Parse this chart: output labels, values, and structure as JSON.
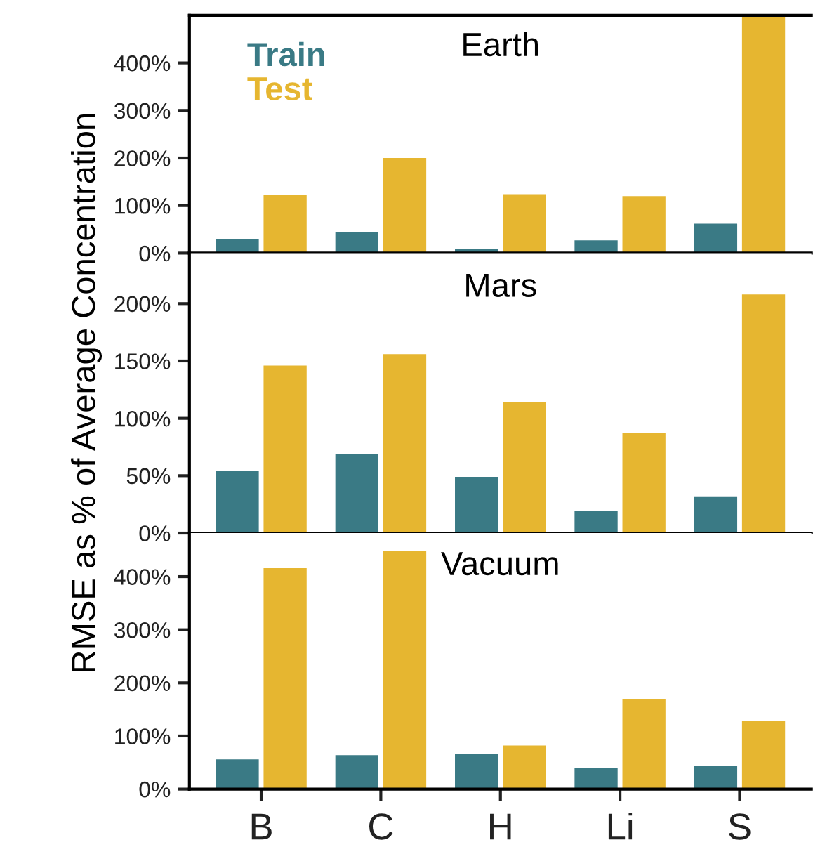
{
  "chart_data": [
    {
      "type": "bar",
      "title": "Earth",
      "categories": [
        null,
        null,
        null,
        null,
        null
      ],
      "series": [
        {
          "name": "Train",
          "color": "#3a7a85",
          "values": [
            29,
            45,
            9,
            27,
            62
          ]
        },
        {
          "name": "Test",
          "color": "#e6b630",
          "values": [
            122,
            200,
            124,
            120,
            500
          ]
        }
      ],
      "ylim": [
        0,
        500
      ],
      "yticks": [
        {
          "value": 0,
          "label": "0%"
        },
        {
          "value": 100,
          "label": "100%"
        },
        {
          "value": 200,
          "label": "200%"
        },
        {
          "value": 300,
          "label": "300%"
        },
        {
          "value": 400,
          "label": "400%"
        }
      ],
      "legend": "top left",
      "grid": false,
      "tick_labels": "y"
    },
    {
      "type": "bar",
      "title": "Mars",
      "ylabel": "RMSE as % of Average Concentration",
      "categories": [
        null,
        null,
        null,
        null,
        null
      ],
      "series": [
        {
          "color": "#3a7a85",
          "values": [
            54,
            69,
            49,
            19,
            32
          ]
        },
        {
          "color": "#e6b630",
          "values": [
            146,
            156,
            114,
            87,
            208
          ]
        }
      ],
      "ylim": [
        0,
        244
      ],
      "yticks": [
        {
          "value": 0,
          "label": "0%"
        },
        {
          "value": 50,
          "label": "50%"
        },
        {
          "value": 100,
          "label": "100%"
        },
        {
          "value": 150,
          "label": "150%"
        },
        {
          "value": 200,
          "label": "200%"
        }
      ],
      "legend": false,
      "grid": false,
      "tick_labels": "y"
    },
    {
      "type": "bar",
      "title": "Vacuum",
      "categories": [
        "B",
        "C",
        "H",
        "Li",
        "S"
      ],
      "series": [
        {
          "color": "#3a7a85",
          "values": [
            56,
            64,
            67,
            39,
            43
          ]
        },
        {
          "color": "#e6b630",
          "values": [
            416,
            449,
            82,
            170,
            129
          ]
        }
      ],
      "ylim": [
        0,
        482
      ],
      "yticks": [
        {
          "value": 0,
          "label": "0%"
        },
        {
          "value": 100,
          "label": "100%"
        },
        {
          "value": 200,
          "label": "200%"
        },
        {
          "value": 300,
          "label": "300%"
        },
        {
          "value": 400,
          "label": "400%"
        }
      ],
      "legend": false,
      "grid": false
    }
  ]
}
